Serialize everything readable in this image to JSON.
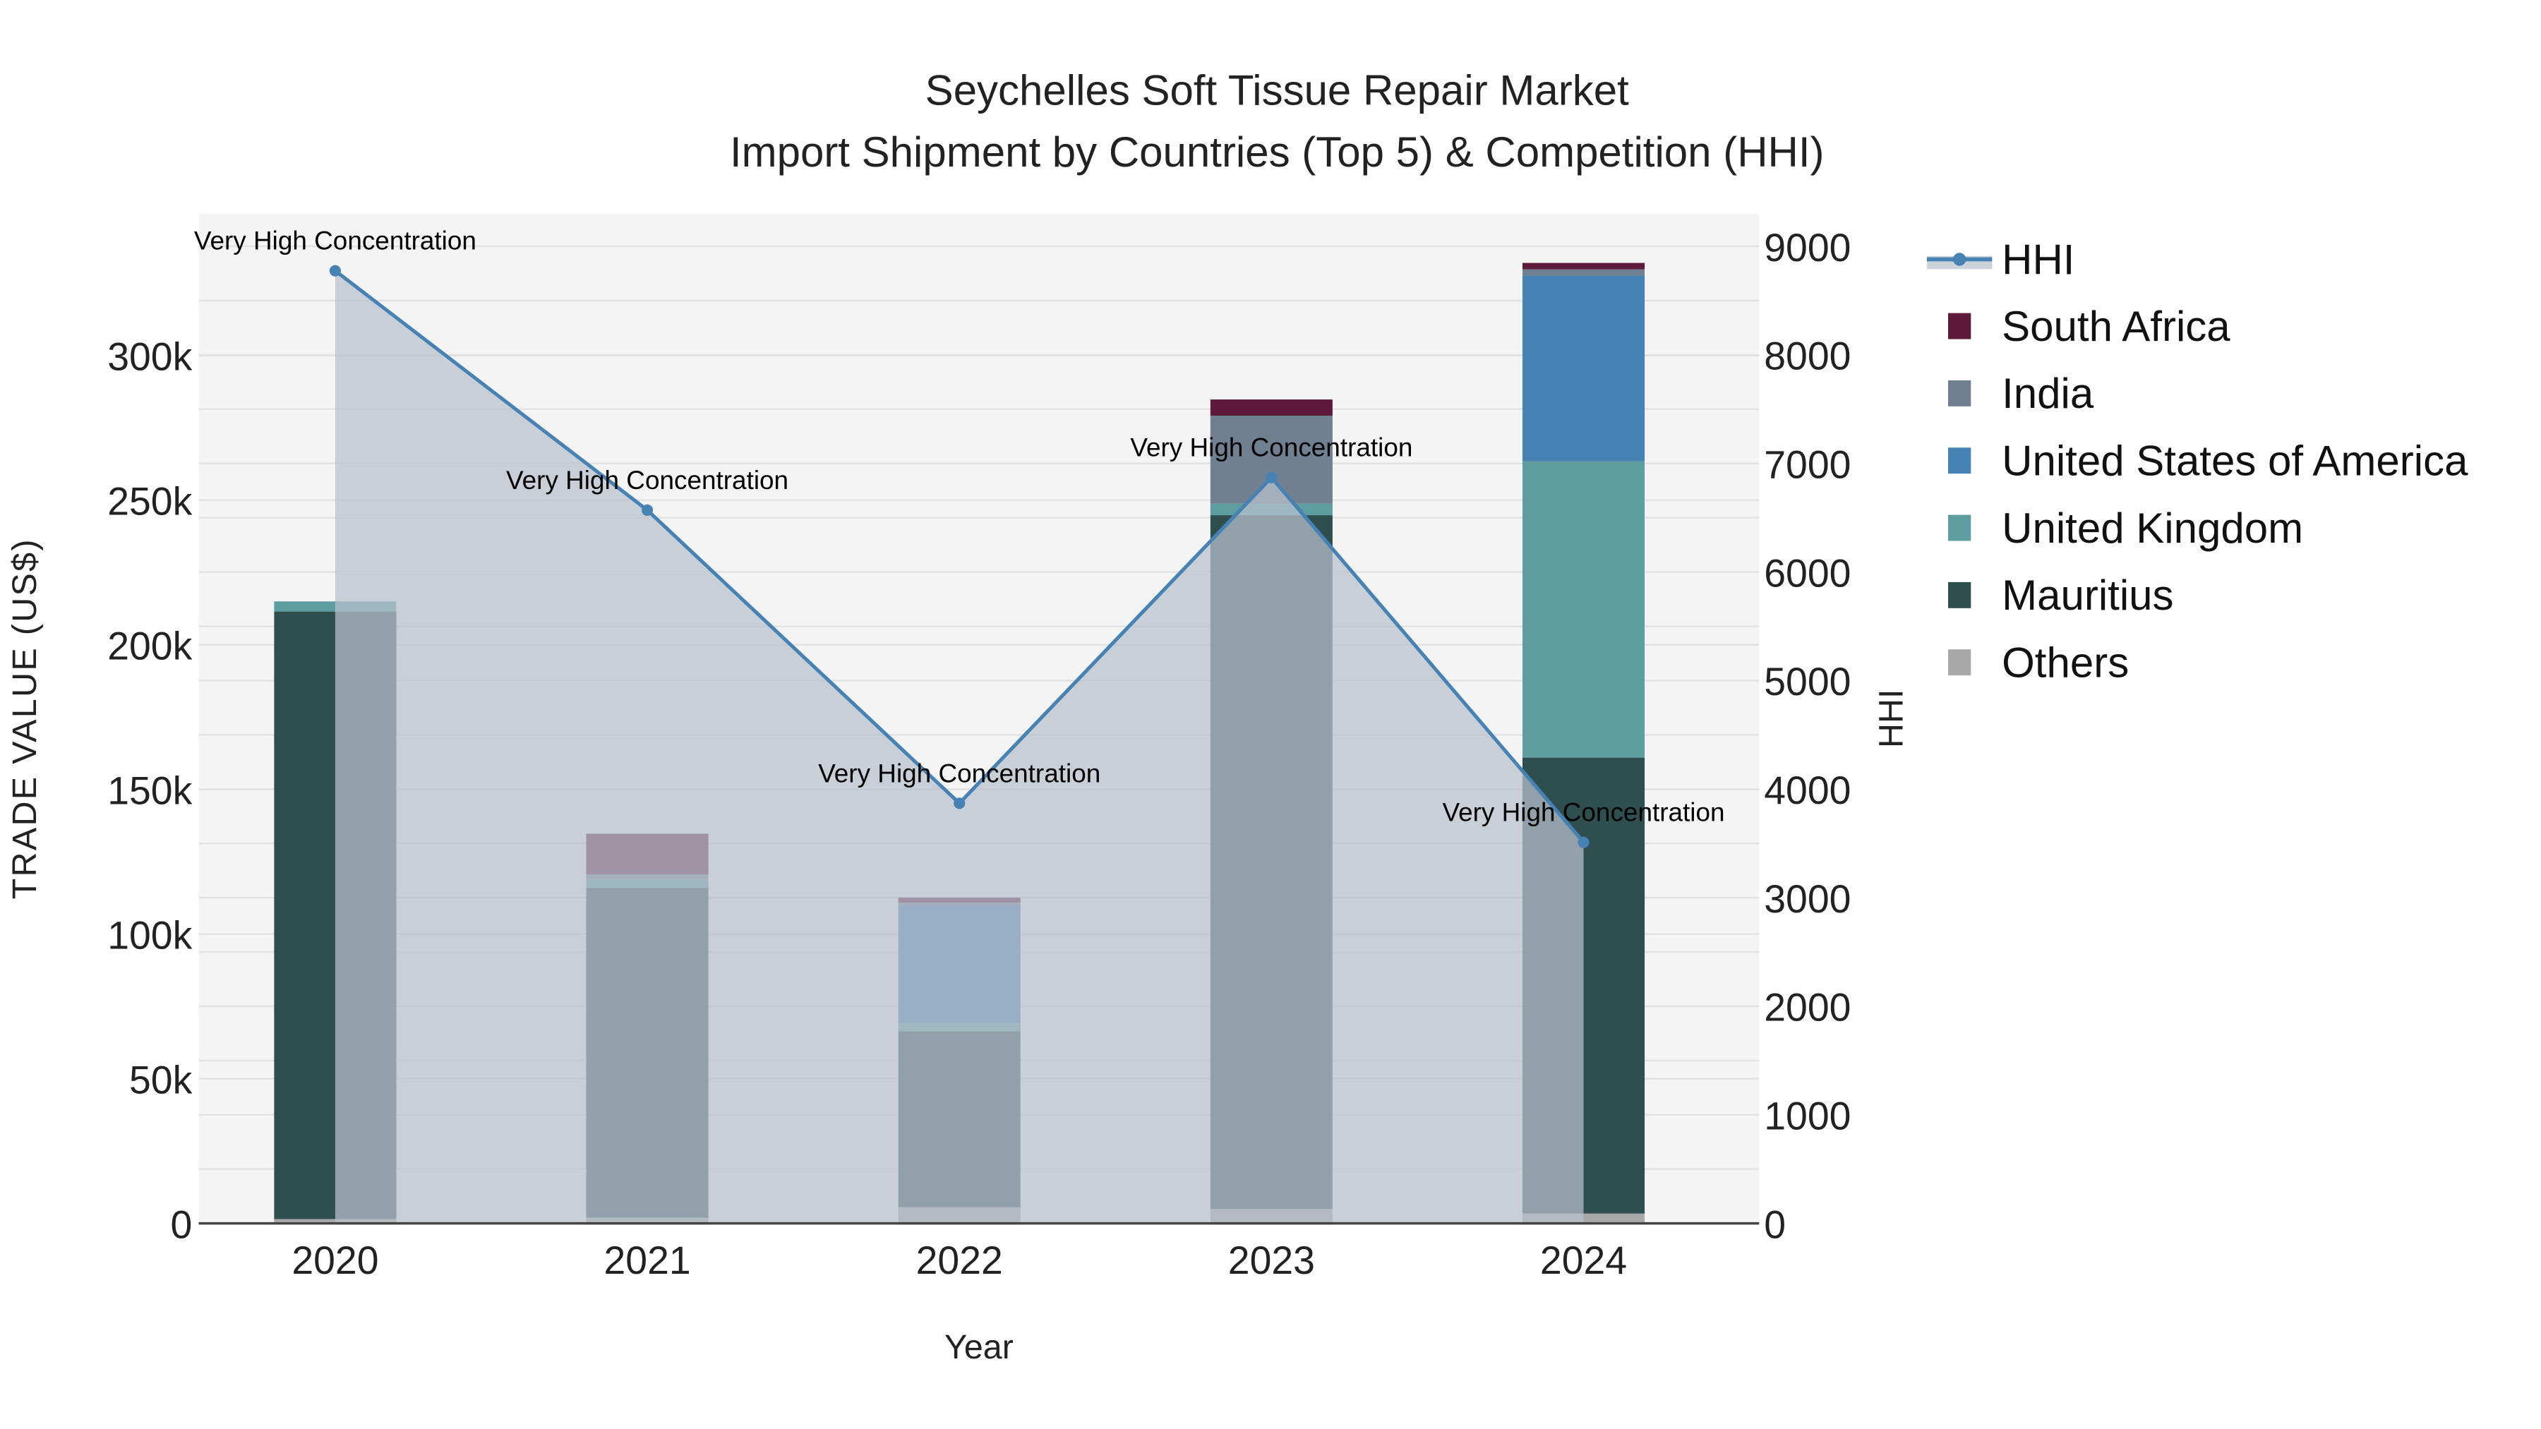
{
  "chart_data": {
    "type": "bar",
    "title_line1": "Seychelles Soft Tissue Repair Market",
    "title_line2": "Import Shipment by Countries (Top 5) & Competition (HHI)",
    "xlabel": "Year",
    "ylabel": "TRADE VALUE (US$)",
    "y2label": "HHI",
    "categories": [
      "2020",
      "2021",
      "2022",
      "2023",
      "2024"
    ],
    "ylim": [
      0,
      349000
    ],
    "y2lim": [
      0,
      9300
    ],
    "yticks": [
      0,
      50000,
      100000,
      150000,
      200000,
      250000,
      300000
    ],
    "ytick_labels": [
      "0",
      "50k",
      "100k",
      "150k",
      "200k",
      "250k",
      "300k"
    ],
    "y2ticks": [
      0,
      1000,
      2000,
      3000,
      4000,
      5000,
      6000,
      7000,
      8000,
      9000
    ],
    "y2tick_labels": [
      "0",
      "1000",
      "2000",
      "3000",
      "4000",
      "5000",
      "6000",
      "7000",
      "8000",
      "9000"
    ],
    "stack_order": [
      "Others",
      "Mauritius",
      "United Kingdom",
      "United States of America",
      "India",
      "South Africa"
    ],
    "series": [
      {
        "name": "South Africa",
        "color": "#5e1a3b",
        "values": [
          0,
          14000,
          1700,
          5600,
          2200
        ]
      },
      {
        "name": "India",
        "color": "#708090",
        "values": [
          0,
          1700,
          1100,
          30400,
          2200
        ]
      },
      {
        "name": "United States of America",
        "color": "#4682b4",
        "values": [
          0,
          0,
          40600,
          0,
          64200
        ]
      },
      {
        "name": "United Kingdom",
        "color": "#5f9ea0",
        "values": [
          3500,
          3000,
          2800,
          4000,
          102400
        ]
      },
      {
        "name": "Mauritius",
        "color": "#2f4f4f",
        "values": [
          210000,
          114000,
          60800,
          239800,
          157600
        ]
      },
      {
        "name": "Others",
        "color": "#a9a9a9",
        "values": [
          1500,
          2000,
          5600,
          5000,
          3400
        ]
      }
    ],
    "hhi": {
      "name": "HHI",
      "color": "#4682b4",
      "values": [
        8775,
        6570,
        3870,
        6870,
        3510
      ],
      "annotations": [
        "Very High Concentration",
        "Very High Concentration",
        "Very High Concentration",
        "Very High Concentration",
        "Very High Concentration"
      ]
    },
    "legend_placement": "right",
    "grid": true
  }
}
